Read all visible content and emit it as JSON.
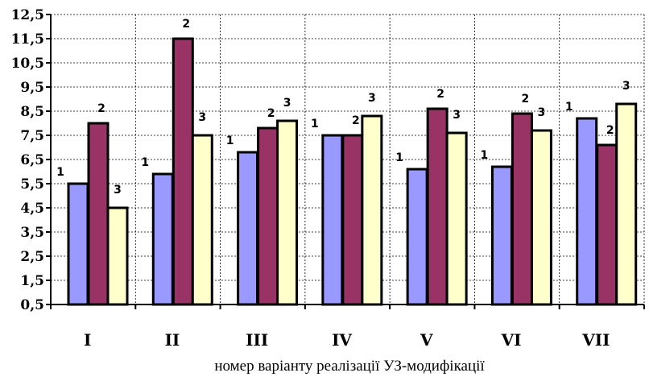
{
  "chart_data": {
    "type": "bar",
    "categories": [
      "I",
      "II",
      "III",
      "IV",
      "V",
      "VI",
      "VII"
    ],
    "series": [
      {
        "name": "1",
        "values": [
          5.5,
          5.9,
          6.8,
          7.5,
          6.1,
          6.2,
          8.2
        ]
      },
      {
        "name": "2",
        "values": [
          8.0,
          11.5,
          7.8,
          7.5,
          8.6,
          8.4,
          7.1
        ]
      },
      {
        "name": "3",
        "values": [
          4.5,
          7.5,
          8.1,
          8.3,
          7.6,
          7.7,
          8.8
        ]
      }
    ],
    "data_labels": [
      "1",
      "2",
      "3"
    ],
    "xlabel": "номер варіанту реалізації УЗ-модифікації",
    "ylabel": "",
    "ylim": [
      0.5,
      12.5
    ],
    "yticks": [
      "0,5",
      "1,5",
      "2,5",
      "3,5",
      "4,5",
      "5,5",
      "6,5",
      "7,5",
      "8,5",
      "9,5",
      "10,5",
      "11,5",
      "12,5"
    ],
    "grid": true,
    "legend": "none",
    "colors": [
      "#9999ff",
      "#993366",
      "#ffffcc"
    ]
  }
}
